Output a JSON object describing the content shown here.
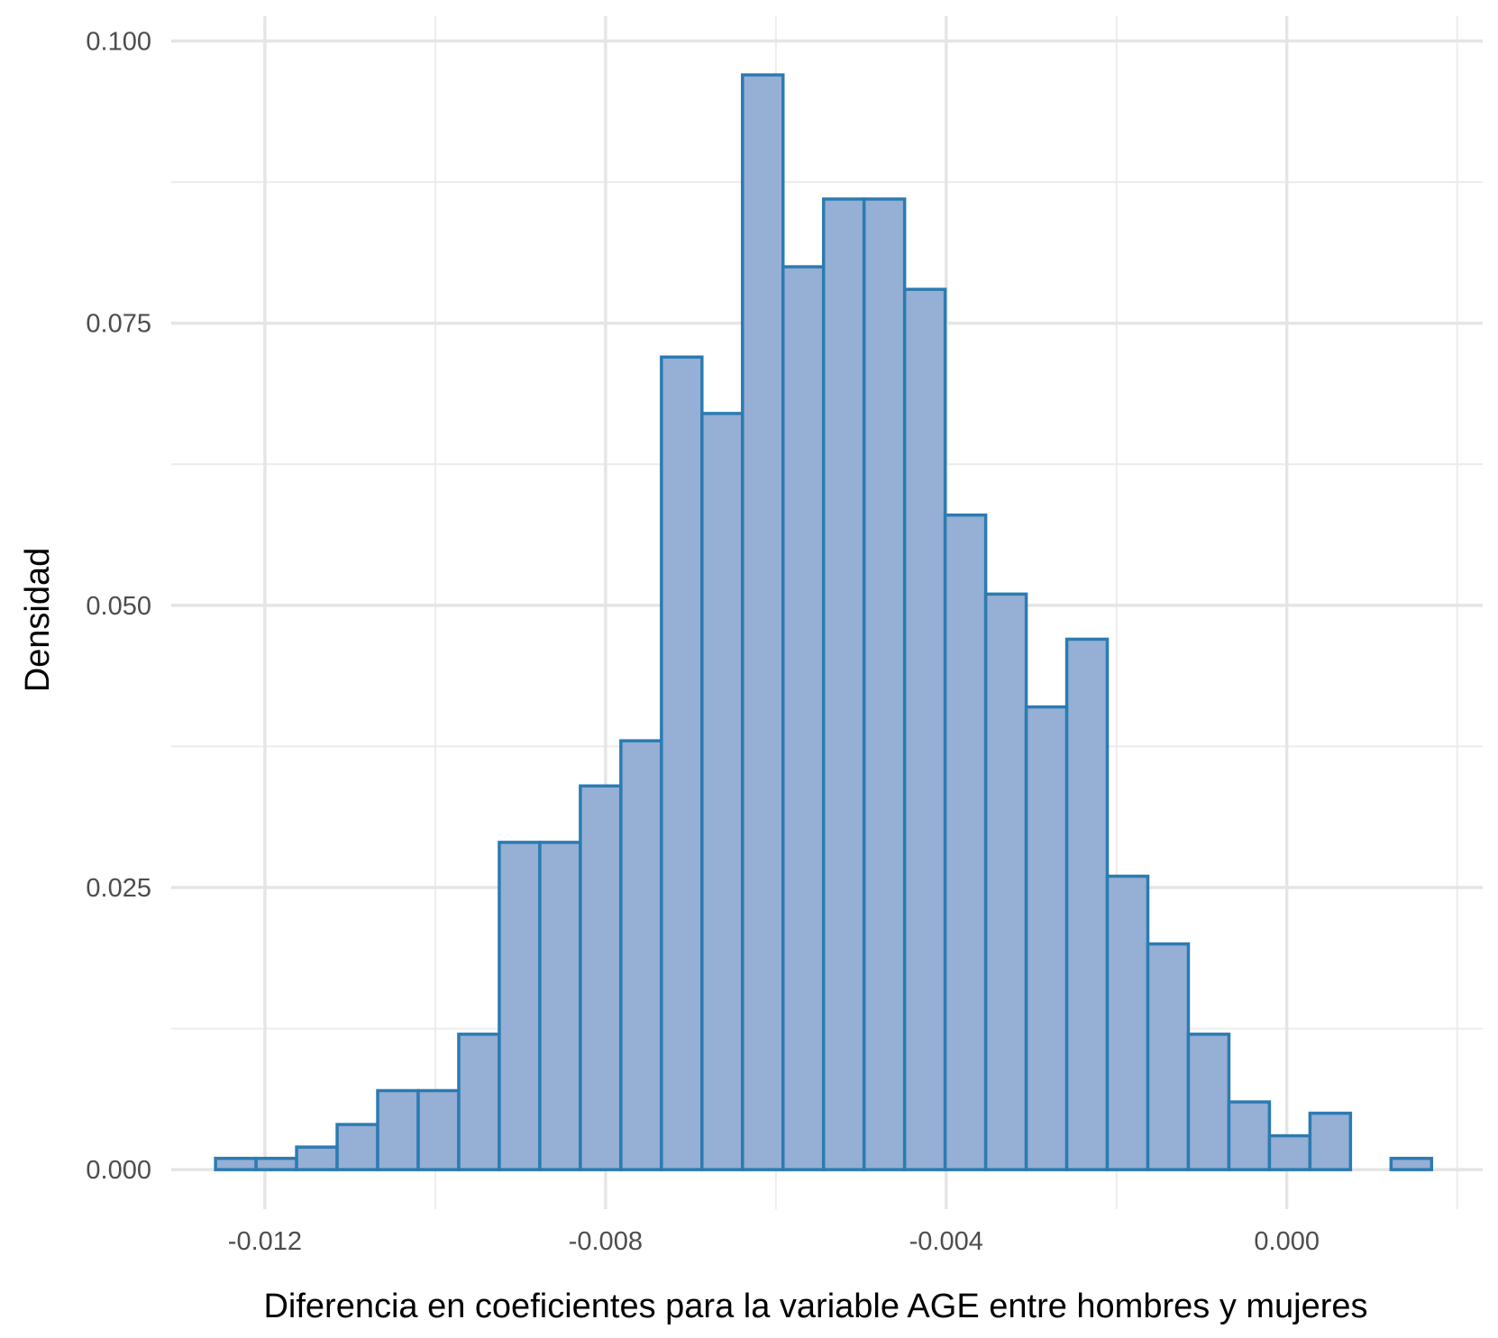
{
  "chart_data": {
    "type": "histogram",
    "title": "",
    "xlabel": "Diferencia en coeficientes para la variable AGE entre hombres y mujeres",
    "ylabel": "Densidad",
    "xlim": [
      -0.0131,
      0.0023
    ],
    "ylim": [
      -0.0035,
      0.1022
    ],
    "x_ticks": [
      -0.012,
      -0.008,
      -0.004,
      0.0
    ],
    "x_tick_labels": [
      "-0.012",
      "-0.008",
      "-0.004",
      "0.000"
    ],
    "x_minor_ticks": [
      -0.01,
      -0.006,
      -0.002,
      0.002
    ],
    "y_ticks": [
      0.0,
      0.025,
      0.05,
      0.075,
      0.1
    ],
    "y_tick_labels": [
      "0.000",
      "0.025",
      "0.050",
      "0.075",
      "0.100"
    ],
    "y_minor_ticks": [
      0.0125,
      0.0375,
      0.0625,
      0.0875
    ],
    "bin_start": -0.01258,
    "bin_width": 0.000476,
    "values": [
      0.001,
      0.001,
      0.002,
      0.004,
      0.007,
      0.007,
      0.012,
      0.029,
      0.029,
      0.034,
      0.038,
      0.072,
      0.067,
      0.097,
      0.08,
      0.086,
      0.086,
      0.078,
      0.058,
      0.051,
      0.041,
      0.047,
      0.026,
      0.02,
      0.012,
      0.006,
      0.003,
      0.005,
      0.0,
      0.001
    ],
    "fill_color": "#95afd5",
    "edge_color": "#2c7bb1",
    "grid": true
  }
}
